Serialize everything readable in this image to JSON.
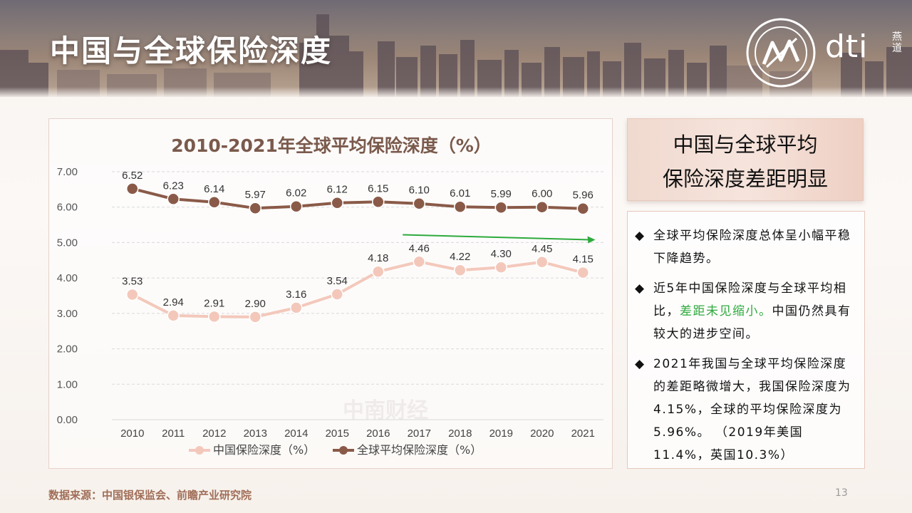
{
  "header": {
    "title": "中国与全球保险深度"
  },
  "logo": {
    "brand": "dti",
    "vertical": "燕道"
  },
  "chart_data": {
    "type": "line",
    "title": "2010-2021年全球平均保险深度（%）",
    "categories": [
      "2010",
      "2011",
      "2012",
      "2013",
      "2014",
      "2015",
      "2016",
      "2017",
      "2018",
      "2019",
      "2020",
      "2021"
    ],
    "series": [
      {
        "name": "中国保险深度（%）",
        "color": "#f3c8bb",
        "values": [
          3.53,
          2.94,
          2.91,
          2.9,
          3.16,
          3.54,
          4.18,
          4.46,
          4.22,
          4.3,
          4.45,
          4.15
        ]
      },
      {
        "name": "全球平均保险深度（%）",
        "color": "#8a5a48",
        "values": [
          6.52,
          6.23,
          6.14,
          5.97,
          6.02,
          6.12,
          6.15,
          6.1,
          6.01,
          5.99,
          6.0,
          5.96
        ]
      }
    ],
    "y_ticks": [
      "0.00",
      "1.00",
      "2.00",
      "3.00",
      "4.00",
      "5.00",
      "6.00",
      "7.00"
    ],
    "ylim": [
      0,
      7
    ],
    "xlabel": "",
    "ylabel": "",
    "legend_position": "bottom",
    "annotation_arrow": {
      "color": "#2eaa3d",
      "from_x": 2016.6,
      "to_x": 2021.3,
      "y_start": 5.22,
      "y_end": 5.08
    }
  },
  "watermark": "中南财经",
  "summary": {
    "line1": "中国与全球平均",
    "line2": "保险深度差距明显"
  },
  "bullets": [
    {
      "marker": "◆",
      "text": "全球平均保险深度总体呈小幅平稳下降趋势。"
    },
    {
      "marker": "◆",
      "before": "近5年中国保险深度与全球平均相比，",
      "highlight": "差距未见缩小。",
      "after": "中国仍然具有较大的进步空间。"
    },
    {
      "marker": "◆",
      "text": "2021年我国与全球平均保险深度的差距略微增大，我国保险深度为4.15%，全球的平均保险深度为5.96%。 （2019年美国11.4%，英国10.3%）"
    }
  ],
  "footer": {
    "source": "数据来源：中国银保监会、前瞻产业研究院",
    "page": "13"
  }
}
